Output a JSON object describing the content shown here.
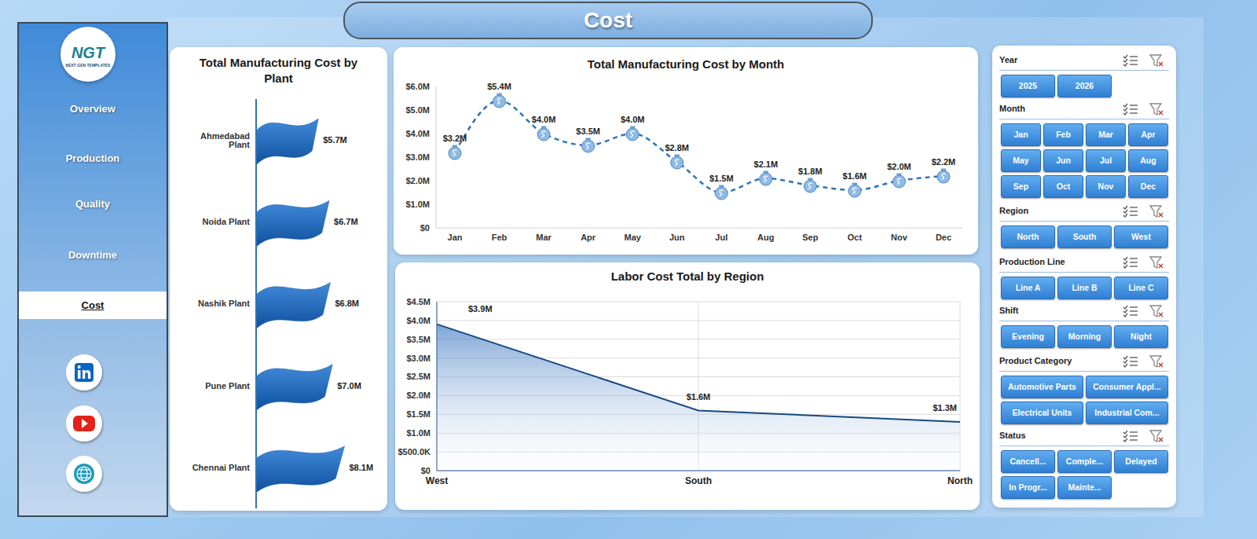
{
  "header": {
    "title": "Cost"
  },
  "logo": {
    "text": "NGT",
    "subtitle": "NEXT GEN TEMPLATES"
  },
  "nav": {
    "items": [
      "Overview",
      "Production",
      "Quality",
      "Downtime",
      "Cost"
    ],
    "active": "Cost"
  },
  "chart_data": [
    {
      "type": "bar",
      "title": "Total Manufacturing Cost by Plant",
      "orientation": "horizontal",
      "categories": [
        "Ahmedabad Plant",
        "Noida Plant",
        "Nashik Plant",
        "Pune Plant",
        "Chennai Plant"
      ],
      "values": [
        5700000,
        6700000,
        6800000,
        7000000,
        8100000
      ],
      "value_labels": [
        "$5.7M",
        "$6.7M",
        "$6.8M",
        "$7.0M",
        "$8.1M"
      ],
      "data_labels": true,
      "color": "#1f74d1",
      "xlim": [
        0,
        9000000
      ],
      "tick_labels": "y",
      "grid": false
    },
    {
      "type": "line",
      "title": "Total Manufacturing Cost by Month",
      "categories": [
        "Jan",
        "Feb",
        "Mar",
        "Apr",
        "May",
        "Jun",
        "Jul",
        "Aug",
        "Sep",
        "Oct",
        "Nov",
        "Dec"
      ],
      "values": [
        3200000,
        5400000,
        4000000,
        3500000,
        4000000,
        2800000,
        1500000,
        2100000,
        1800000,
        1600000,
        2000000,
        2200000
      ],
      "value_labels": [
        "$3.2M",
        "$5.4M",
        "$4.0M",
        "$3.5M",
        "$4.0M",
        "$2.8M",
        "$1.5M",
        "$2.1M",
        "$1.8M",
        "$1.6M",
        "$2.0M",
        "$2.2M"
      ],
      "data_labels": true,
      "color": "#2e75b6",
      "marker": "money_bag",
      "line_style": "dashed",
      "grid": false,
      "ylim": [
        0,
        6000000
      ],
      "yticks": [
        {
          "value": 0,
          "label": "$0"
        },
        {
          "value": 1000000,
          "label": "$1.0M"
        },
        {
          "value": 2000000,
          "label": "$2.0M"
        },
        {
          "value": 3000000,
          "label": "$3.0M"
        },
        {
          "value": 4000000,
          "label": "$4.0M"
        },
        {
          "value": 5000000,
          "label": "$5.0M"
        },
        {
          "value": 6000000,
          "label": "$6.0M"
        }
      ]
    },
    {
      "type": "area",
      "title": "Labor Cost Total by Region",
      "categories": [
        "West",
        "South",
        "North"
      ],
      "values": [
        3900000,
        1600000,
        1300000
      ],
      "value_labels": [
        "$3.9M",
        "$1.6M",
        "$1.3M"
      ],
      "data_labels": true,
      "color": "#1f63b8",
      "grid": true,
      "ylim": [
        0,
        4500000
      ],
      "yticks": [
        {
          "value": 0,
          "label": "$0"
        },
        {
          "value": 500000,
          "label": "$500.0K"
        },
        {
          "value": 1000000,
          "label": "$1.0M"
        },
        {
          "value": 1500000,
          "label": "$1.5M"
        },
        {
          "value": 2000000,
          "label": "$2.0M"
        },
        {
          "value": 2500000,
          "label": "$2.5M"
        },
        {
          "value": 3000000,
          "label": "$3.0M"
        },
        {
          "value": 3500000,
          "label": "$3.5M"
        },
        {
          "value": 4000000,
          "label": "$4.0M"
        },
        {
          "value": 4500000,
          "label": "$4.5M"
        }
      ]
    }
  ],
  "slicers": [
    {
      "title": "Year",
      "items": [
        "2025",
        "2026"
      ]
    },
    {
      "title": "Month",
      "items": [
        "Jan",
        "Feb",
        "Mar",
        "Apr",
        "May",
        "Jun",
        "Jul",
        "Aug",
        "Sep",
        "Oct",
        "Nov",
        "Dec"
      ]
    },
    {
      "title": "Region",
      "items": [
        "North",
        "South",
        "West"
      ]
    },
    {
      "title": "Production Line",
      "items": [
        "Line A",
        "Line B",
        "Line C"
      ]
    },
    {
      "title": "Shift",
      "items": [
        "Evening",
        "Morning",
        "Night"
      ]
    },
    {
      "title": "Product Category",
      "items": [
        "Automotive Parts",
        "Consumer Appl...",
        "Electrical Units",
        "Industrial Com..."
      ]
    },
    {
      "title": "Status",
      "items": [
        "Cancell...",
        "Comple...",
        "Delayed",
        "In Progr...",
        "Mainte..."
      ]
    }
  ]
}
